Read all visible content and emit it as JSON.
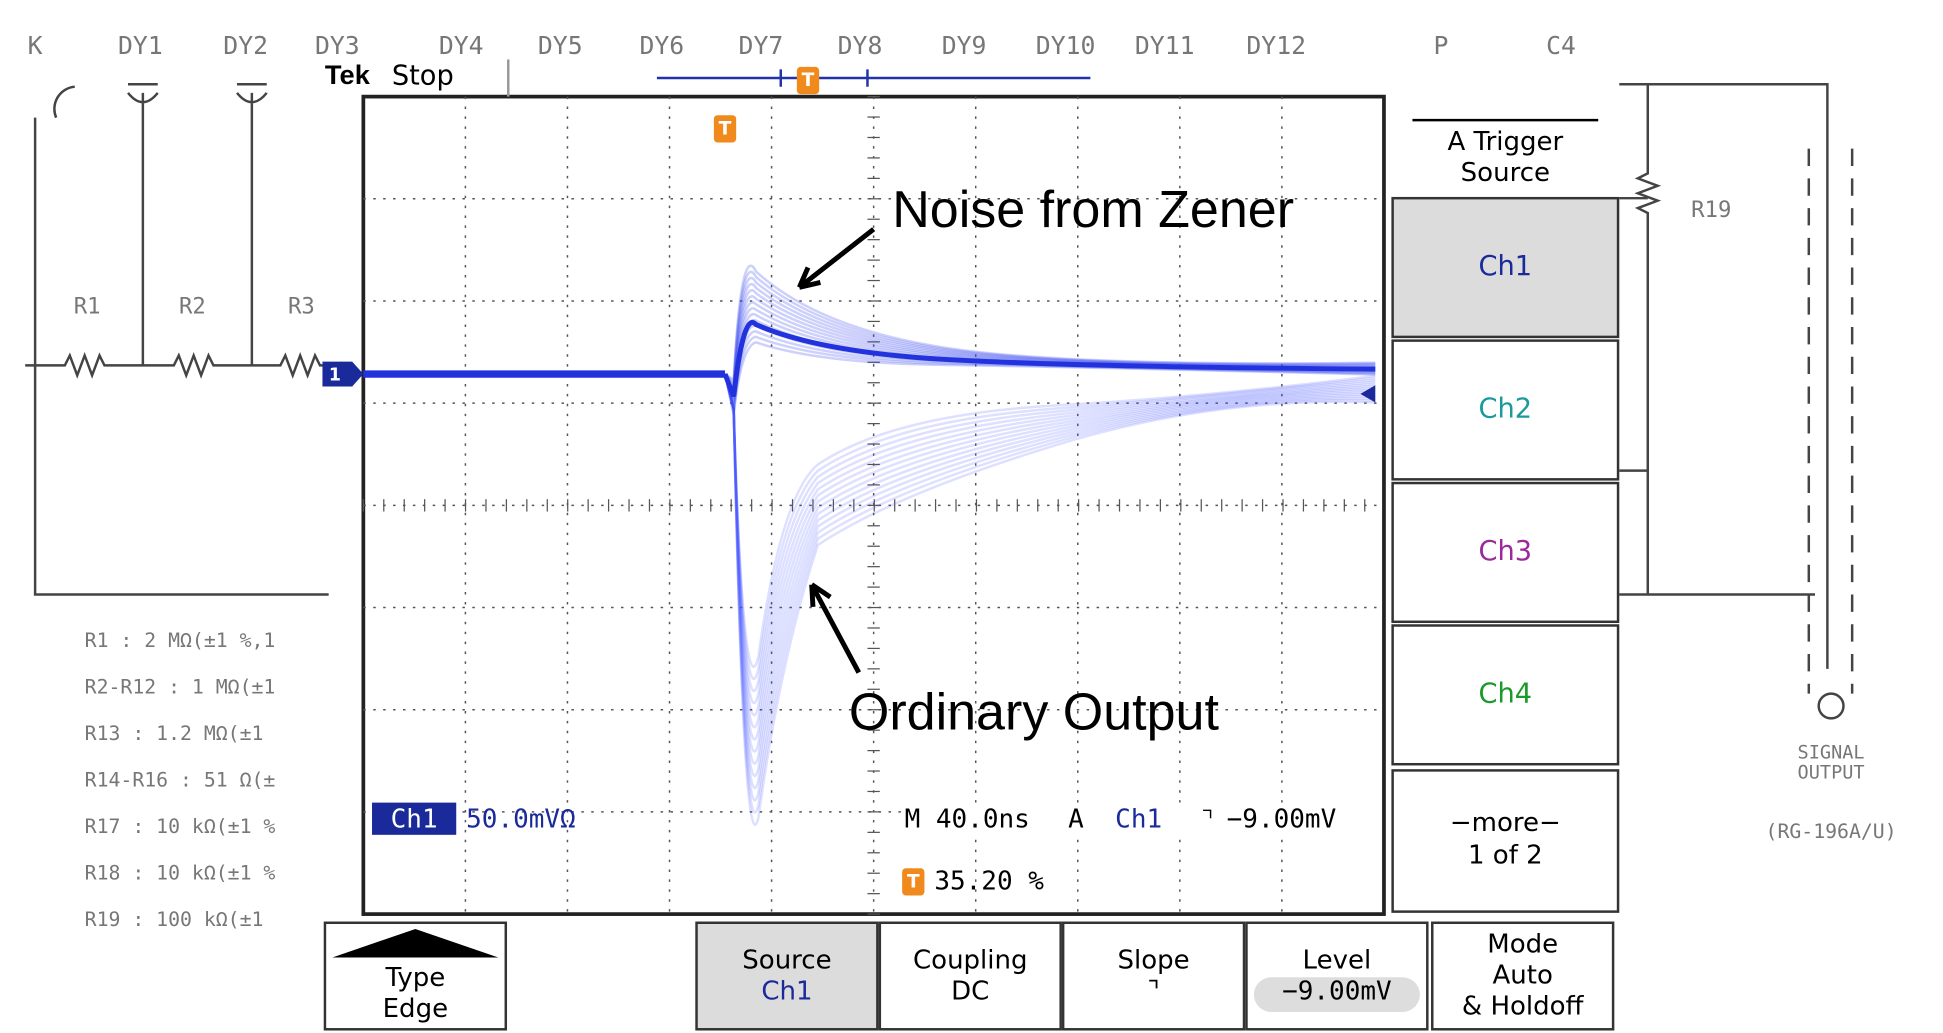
{
  "schematic": {
    "top_labels": [
      "K",
      "DY1",
      "DY2",
      "DY3",
      "DY4",
      "DY5",
      "DY6",
      "DY7",
      "DY8",
      "DY9",
      "DY10",
      "DY11",
      "DY12",
      "P",
      "C4"
    ],
    "resistors": [
      "R1",
      "R2",
      "R3",
      "R19"
    ],
    "resistor_specs": [
      "R1 : 2 MΩ(±1 %,1",
      "R2-R12 : 1 MΩ(±1",
      "R13 : 1.2 MΩ(±1",
      "R14-R16 : 51 Ω(±",
      "R17 : 10 kΩ(±1 %",
      "R18 : 10 kΩ(±1 %",
      "R19 : 100 kΩ(±1"
    ],
    "signal_output": [
      "SIGNAL",
      "OUTPUT"
    ],
    "cable": "(RG-196A/U)"
  },
  "scope": {
    "brand": "Tek",
    "status": "Stop",
    "trigger_marker": "T",
    "channel_marker": "1",
    "readouts": {
      "channel": "Ch1",
      "scale": "50.0mVΩ",
      "timebase": "M 40.0ns",
      "trigger_mode": "A",
      "trigger_channel": "Ch1",
      "slope": "⌝",
      "trigger_level": "−9.00mV",
      "trigger_position": "35.20 %"
    }
  },
  "trigger_menu": {
    "title": [
      "A Trigger",
      "Source"
    ],
    "options": [
      "Ch1",
      "Ch2",
      "Ch3",
      "Ch4"
    ],
    "more": [
      "−more−",
      "1 of 2"
    ]
  },
  "bottom_menu": [
    [
      "Type",
      "Edge"
    ],
    [
      "Source",
      "Ch1"
    ],
    [
      "Coupling",
      "DC"
    ],
    [
      "Slope",
      "⌝"
    ],
    [
      "Level",
      "−9.00mV"
    ],
    [
      "Mode",
      "Auto",
      "& Holdoff"
    ]
  ],
  "annotations": [
    "Noise from Zener",
    "Ordinary Output"
  ]
}
